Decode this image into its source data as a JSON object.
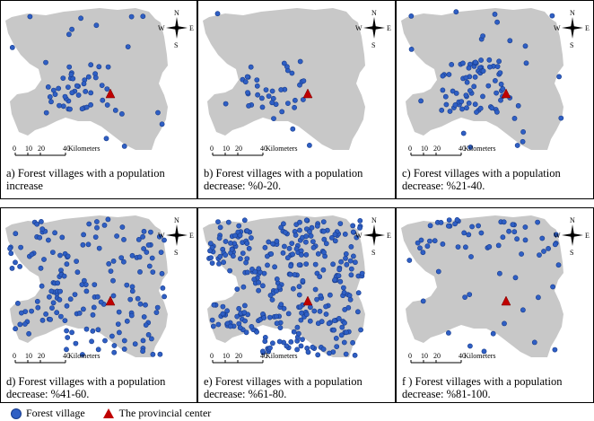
{
  "panels": [
    {
      "id": "a",
      "letter": "a)",
      "caption": "Forest villages with a population increase",
      "scale": {
        "ticks": [
          "0",
          "10",
          "20",
          "40"
        ],
        "unit": "Kilometers"
      }
    },
    {
      "id": "b",
      "letter": "b)",
      "caption": "Forest villages with a population decrease: %0-20.",
      "scale": {
        "ticks": [
          "0",
          "10",
          "20",
          "40"
        ],
        "unit": "Kilometers"
      }
    },
    {
      "id": "c",
      "letter": "c)",
      "caption": "Forest villages with a population decrease: %21-40.",
      "scale": {
        "ticks": [
          "0",
          "10",
          "20",
          "40"
        ],
        "unit": "Kilometers"
      }
    },
    {
      "id": "d",
      "letter": "d)",
      "caption": "Forest villages with a population decrease: %41-60.",
      "scale": {
        "ticks": [
          "0",
          "10",
          "20",
          "40"
        ],
        "unit": "Kilometers"
      }
    },
    {
      "id": "e",
      "letter": "e)",
      "caption": "Forest villages with a population decrease: %61-80.",
      "scale": {
        "ticks": [
          "0",
          "10",
          "20",
          "40"
        ],
        "unit": "Kilometers"
      }
    },
    {
      "id": "f",
      "letter": "f )",
      "caption": "Forest villages with a population decrease: %81-100.",
      "scale": {
        "ticks": [
          "0",
          "10",
          "20",
          "40"
        ],
        "unit": "Kilometers"
      }
    }
  ],
  "compass": {
    "n": "N",
    "s": "S",
    "e": "E",
    "w": "W"
  },
  "legend": {
    "village": "Forest village",
    "center": "The provincial center"
  },
  "colors": {
    "village": "#2f5fc4",
    "village_stroke": "#183c8c",
    "center": "#c00000",
    "land": "#c8c8c8"
  }
}
